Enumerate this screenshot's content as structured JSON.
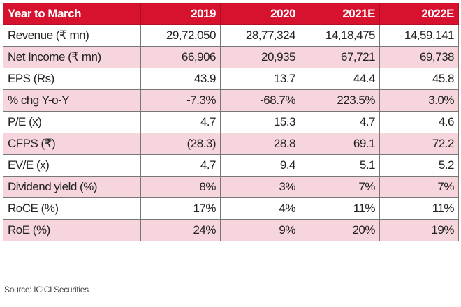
{
  "table": {
    "columns": [
      "Year to March",
      "2019",
      "2020",
      "2021E",
      "2022E"
    ],
    "rows": [
      {
        "label": "Revenue (₹ mn)",
        "values": [
          "29,72,050",
          "28,77,324",
          "14,18,475",
          "14,59,141"
        ]
      },
      {
        "label": "Net Income (₹ mn)",
        "values": [
          "66,906",
          "20,935",
          "67,721",
          "69,738"
        ]
      },
      {
        "label": "EPS (Rs)",
        "values": [
          "43.9",
          "13.7",
          "44.4",
          "45.8"
        ]
      },
      {
        "label": "% chg Y-o-Y",
        "values": [
          "-7.3%",
          "-68.7%",
          "223.5%",
          "3.0%"
        ]
      },
      {
        "label": "P/E (x)",
        "values": [
          "4.7",
          "15.3",
          "4.7",
          "4.6"
        ]
      },
      {
        "label": "CFPS (₹)",
        "values": [
          "(28.3)",
          "28.8",
          "69.1",
          "72.2"
        ]
      },
      {
        "label": "EV/E (x)",
        "values": [
          "4.7",
          "9.4",
          "5.1",
          "5.2"
        ]
      },
      {
        "label": "Dividend yield (%)",
        "values": [
          "8%",
          "3%",
          "7%",
          "7%"
        ]
      },
      {
        "label": "RoCE (%)",
        "values": [
          "17%",
          "4%",
          "11%",
          "11%"
        ]
      },
      {
        "label": "RoE (%)",
        "values": [
          "24%",
          "9%",
          "20%",
          "19%"
        ]
      }
    ]
  },
  "source": "Source: ICICI Securities",
  "colors": {
    "header_bg": "#d7122f",
    "shaded_row_bg": "#f6d6dc"
  }
}
